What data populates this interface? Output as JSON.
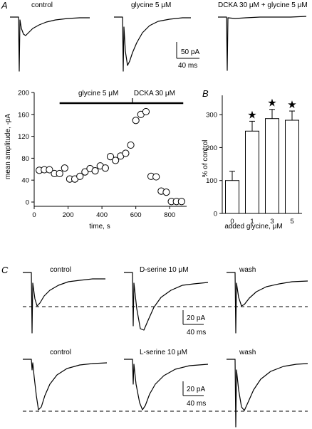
{
  "panels": {
    "a": "A",
    "b": "B",
    "c": "C"
  },
  "panel_a_traces": {
    "labels": [
      "control",
      "glycine 5 μM",
      "DCKA 30 μM + glycine 5 μM"
    ],
    "scalebar": {
      "amp": "50 pA",
      "time": "40 ms"
    }
  },
  "panel_c_traces": {
    "row1_labels": [
      "control",
      "D-serine 10 μM",
      "wash"
    ],
    "row2_labels": [
      "control",
      "L-serine 10 μM",
      "wash"
    ],
    "scalebar": {
      "amp": "20 pA",
      "time": "40 ms"
    }
  },
  "chart_data": [
    {
      "type": "scatter",
      "title": "",
      "xlabel": "time, s",
      "ylabel": "mean amplitude, -pA",
      "xlim": [
        0,
        900
      ],
      "ylim": [
        0,
        200
      ],
      "xticks": [
        0,
        200,
        400,
        600,
        800
      ],
      "yticks": [
        0,
        40,
        80,
        120,
        160,
        200
      ],
      "annotations": [
        {
          "text": "glycine 5 μM",
          "x_start": 150,
          "x_end": 880
        },
        {
          "text": "DCKA 30 μM",
          "x_start": 580,
          "x_end": 880
        }
      ],
      "points": [
        {
          "x": 30,
          "y": 58
        },
        {
          "x": 60,
          "y": 59
        },
        {
          "x": 90,
          "y": 59
        },
        {
          "x": 120,
          "y": 52
        },
        {
          "x": 150,
          "y": 52
        },
        {
          "x": 180,
          "y": 62
        },
        {
          "x": 210,
          "y": 42
        },
        {
          "x": 240,
          "y": 42
        },
        {
          "x": 270,
          "y": 47
        },
        {
          "x": 300,
          "y": 55
        },
        {
          "x": 330,
          "y": 61
        },
        {
          "x": 360,
          "y": 57
        },
        {
          "x": 390,
          "y": 66
        },
        {
          "x": 420,
          "y": 62
        },
        {
          "x": 450,
          "y": 83
        },
        {
          "x": 480,
          "y": 76
        },
        {
          "x": 510,
          "y": 84
        },
        {
          "x": 540,
          "y": 89
        },
        {
          "x": 570,
          "y": 104
        },
        {
          "x": 600,
          "y": 149
        },
        {
          "x": 630,
          "y": 160
        },
        {
          "x": 660,
          "y": 165
        },
        {
          "x": 690,
          "y": 47
        },
        {
          "x": 720,
          "y": 46
        },
        {
          "x": 750,
          "y": 20
        },
        {
          "x": 780,
          "y": 18
        },
        {
          "x": 810,
          "y": 1
        },
        {
          "x": 840,
          "y": 1
        },
        {
          "x": 870,
          "y": 1
        }
      ]
    },
    {
      "type": "bar",
      "title": "",
      "xlabel": "added glycine, μM",
      "ylabel": "% of control",
      "categories": [
        "0",
        "1",
        "3",
        "5"
      ],
      "values": [
        100,
        250,
        288,
        283
      ],
      "errors": [
        28,
        30,
        28,
        28
      ],
      "significant": [
        false,
        true,
        true,
        true
      ],
      "ylim": [
        0,
        350
      ],
      "yticks": [
        0,
        100,
        200,
        300
      ],
      "marker": "★"
    }
  ]
}
